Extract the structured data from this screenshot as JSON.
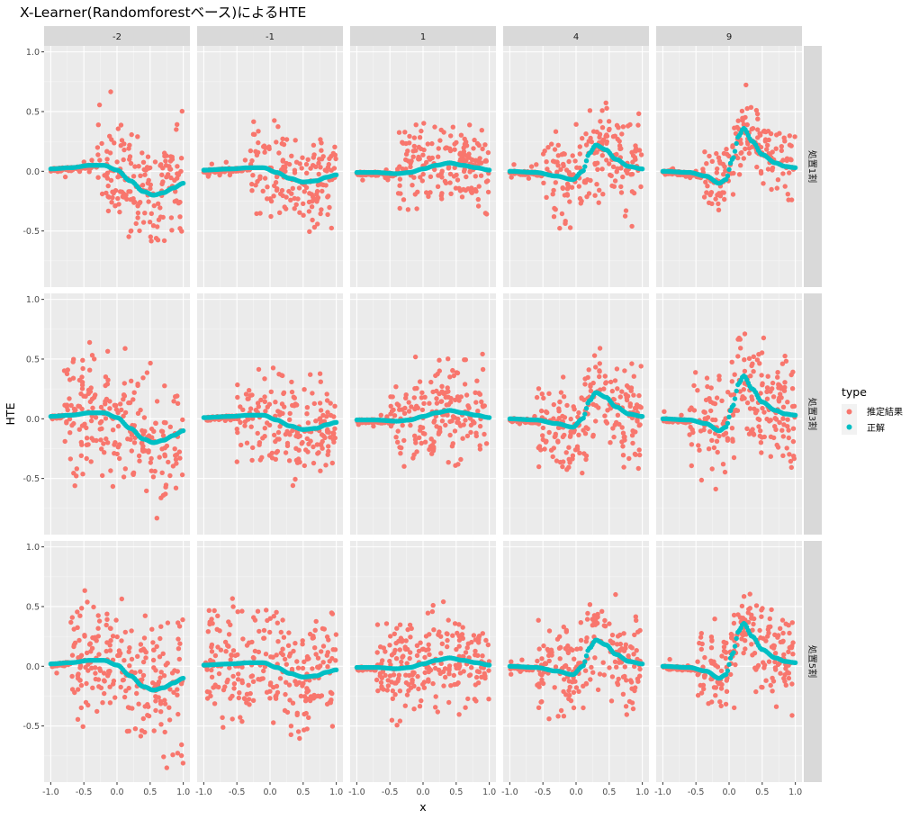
{
  "chart_data": {
    "type": "scatter",
    "title": "X-Learner(Randomforestベース)によるHTE",
    "xlabel": "x",
    "ylabel": "HTE",
    "xlim": [
      -1.1,
      1.1
    ],
    "ylim": [
      -0.97,
      1.05
    ],
    "x_ticks": [
      -1.0,
      -0.5,
      0.0,
      0.5,
      1.0
    ],
    "x_tick_labels": [
      "-1.0",
      "-0.5",
      "0.0",
      "0.5",
      "1.0"
    ],
    "y_ticks": [
      1.0,
      0.5,
      0.0,
      -0.5
    ],
    "y_tick_labels": [
      "1.0",
      "0.5",
      "0.0",
      "-0.5"
    ],
    "grid": true,
    "facet_cols": [
      "-2",
      "-1",
      "1",
      "4",
      "9"
    ],
    "facet_rows": [
      "処置1割",
      "処置3割",
      "処置5割"
    ],
    "legend": {
      "title": "type",
      "position": "right",
      "entries": [
        {
          "label": "推定結果",
          "color": "#F8766D"
        },
        {
          "label": "正解",
          "color": "#00BFC4"
        }
      ]
    },
    "truth_curves": {
      "-2": [
        [
          -1.0,
          0.02
        ],
        [
          -0.7,
          0.03
        ],
        [
          -0.4,
          0.05
        ],
        [
          -0.2,
          0.05
        ],
        [
          0.0,
          0.01
        ],
        [
          0.2,
          -0.08
        ],
        [
          0.4,
          -0.17
        ],
        [
          0.55,
          -0.2
        ],
        [
          0.7,
          -0.18
        ],
        [
          0.85,
          -0.14
        ],
        [
          1.0,
          -0.1
        ]
      ],
      "-1": [
        [
          -1.0,
          0.01
        ],
        [
          -0.6,
          0.02
        ],
        [
          -0.3,
          0.03
        ],
        [
          -0.1,
          0.03
        ],
        [
          0.1,
          -0.01
        ],
        [
          0.3,
          -0.06
        ],
        [
          0.5,
          -0.09
        ],
        [
          0.7,
          -0.08
        ],
        [
          0.85,
          -0.05
        ],
        [
          1.0,
          -0.03
        ]
      ],
      "1": [
        [
          -1.0,
          -0.01
        ],
        [
          -0.7,
          -0.01
        ],
        [
          -0.4,
          -0.02
        ],
        [
          -0.2,
          -0.01
        ],
        [
          0.0,
          0.02
        ],
        [
          0.2,
          0.05
        ],
        [
          0.4,
          0.07
        ],
        [
          0.6,
          0.05
        ],
        [
          0.8,
          0.03
        ],
        [
          1.0,
          0.01
        ]
      ],
      "4": [
        [
          -1.0,
          0.0
        ],
        [
          -0.6,
          -0.01
        ],
        [
          -0.3,
          -0.04
        ],
        [
          -0.05,
          -0.07
        ],
        [
          0.1,
          0.0
        ],
        [
          0.2,
          0.15
        ],
        [
          0.3,
          0.22
        ],
        [
          0.45,
          0.18
        ],
        [
          0.6,
          0.1
        ],
        [
          0.8,
          0.04
        ],
        [
          1.0,
          0.02
        ]
      ],
      "9": [
        [
          -1.0,
          0.0
        ],
        [
          -0.6,
          -0.01
        ],
        [
          -0.35,
          -0.04
        ],
        [
          -0.15,
          -0.1
        ],
        [
          -0.05,
          -0.07
        ],
        [
          0.05,
          0.1
        ],
        [
          0.15,
          0.3
        ],
        [
          0.22,
          0.36
        ],
        [
          0.35,
          0.25
        ],
        [
          0.5,
          0.14
        ],
        [
          0.7,
          0.07
        ],
        [
          0.85,
          0.04
        ],
        [
          1.0,
          0.03
        ]
      ]
    },
    "estimate_profiles": {
      "note_rows": [
        "処置1割",
        "処置3割",
        "処置5割"
      ],
      "spread": [
        {
          "-2": 0.28,
          "-1": 0.22,
          "1": 0.22,
          "4": 0.25,
          "9": 0.18
        },
        {
          "-2": 0.32,
          "-1": 0.24,
          "1": 0.26,
          "4": 0.24,
          "9": 0.26
        },
        {
          "-2": 0.34,
          "-1": 0.3,
          "1": 0.26,
          "4": 0.26,
          "9": 0.24
        }
      ],
      "active_from_x": [
        {
          "-2": -0.3,
          "-1": -0.3,
          "1": -0.4,
          "4": -0.5,
          "9": -0.4
        },
        {
          "-2": -0.8,
          "-1": -0.5,
          "1": -0.5,
          "4": -0.6,
          "9": -0.6
        },
        {
          "-2": -0.7,
          "-1": -0.95,
          "1": -0.7,
          "4": -0.6,
          "9": -0.5
        }
      ],
      "points_per_panel": 260
    }
  }
}
